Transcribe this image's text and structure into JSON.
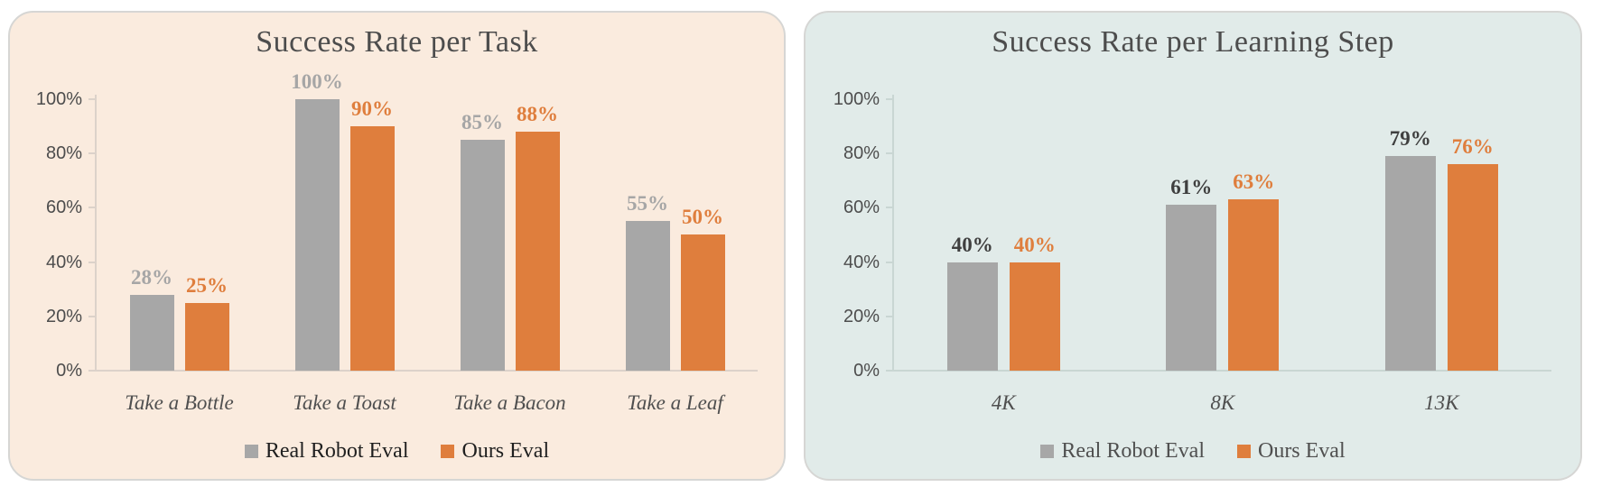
{
  "page": {
    "background": "#ffffff"
  },
  "charts": [
    {
      "title": "Success Rate per Task",
      "background": "#faebde",
      "axis_color": "#dcd2ca",
      "legend_text_color": "#1f1f1f",
      "chart_data": {
        "type": "bar",
        "title": "Success Rate per Task",
        "categories": [
          "Take a Bottle",
          "Take a Toast",
          "Take a Bacon",
          "Take a Leaf"
        ],
        "series": [
          {
            "name": "Real Robot Eval",
            "color": "#a7a7a7",
            "label_color": "#a6a6a6",
            "values": [
              28,
              100,
              85,
              55
            ],
            "data_labels": [
              "28%",
              "100%",
              "85%",
              "55%"
            ]
          },
          {
            "name": "Ours Eval",
            "color": "#df7e3d",
            "label_color": "#df7e3d",
            "values": [
              25,
              90,
              88,
              50
            ],
            "data_labels": [
              "25%",
              "90%",
              "88%",
              "50%"
            ]
          }
        ],
        "xlabel": "",
        "ylabel": "",
        "ylim": [
          0,
          100
        ],
        "y_ticks": [
          "100%",
          "80%",
          "60%",
          "40%",
          "20%",
          "0%"
        ],
        "grid": false,
        "legend_position": "bottom",
        "category_style": "italic"
      },
      "legend": [
        {
          "label": "Real Robot Eval",
          "color": "#a7a7a7"
        },
        {
          "label": "Ours Eval",
          "color": "#df7e3d"
        }
      ]
    },
    {
      "title": "Success Rate per Learning Step",
      "background": "#e1ebe9",
      "axis_color": "#c9d6d3",
      "legend_text_color": "#4f4f4f",
      "chart_data": {
        "type": "bar",
        "title": "Success Rate per Learning Step",
        "categories": [
          "4K",
          "8K",
          "13K"
        ],
        "series": [
          {
            "name": "Real Robot Eval",
            "color": "#a7a7a7",
            "label_color": "#3f3f3f",
            "values": [
              40,
              61,
              79
            ],
            "data_labels": [
              "40%",
              "61%",
              "79%"
            ]
          },
          {
            "name": "Ours Eval",
            "color": "#df7e3d",
            "label_color": "#df7e3d",
            "values": [
              40,
              63,
              76
            ],
            "data_labels": [
              "40%",
              "63%",
              "76%"
            ]
          }
        ],
        "xlabel": "",
        "ylabel": "",
        "ylim": [
          0,
          100
        ],
        "y_ticks": [
          "100%",
          "80%",
          "60%",
          "40%",
          "20%",
          "0%"
        ],
        "grid": false,
        "legend_position": "bottom",
        "category_style": "italic"
      },
      "legend": [
        {
          "label": "Real Robot Eval",
          "color": "#a7a7a7"
        },
        {
          "label": "Ours Eval",
          "color": "#df7e3d"
        }
      ]
    }
  ]
}
